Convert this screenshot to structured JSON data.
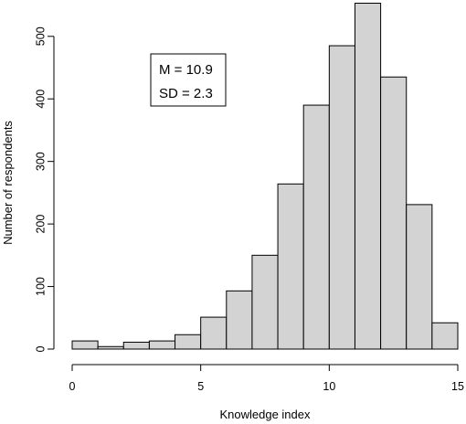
{
  "chart_data": {
    "type": "bar",
    "subtype": "histogram",
    "title": "",
    "xlabel": "Knowledge index",
    "ylabel": "Number of respondents",
    "bin_edges": [
      0,
      1,
      2,
      3,
      4,
      5,
      6,
      7,
      8,
      9,
      10,
      11,
      12,
      13,
      14,
      15
    ],
    "values": [
      13,
      4,
      11,
      13,
      23,
      51,
      93,
      150,
      264,
      390,
      485,
      553,
      435,
      231,
      42
    ],
    "xlim": [
      0,
      15
    ],
    "ylim": [
      0,
      553
    ],
    "x_ticks": [
      "0",
      "5",
      "10",
      "15"
    ],
    "y_ticks": [
      "0",
      "100",
      "200",
      "300",
      "400",
      "500"
    ],
    "grid": false,
    "bar_color": "#d3d3d3",
    "edge_color": "#000000",
    "annotation": {
      "lines": [
        "M = 10.9",
        "SD = 2.3"
      ]
    }
  }
}
